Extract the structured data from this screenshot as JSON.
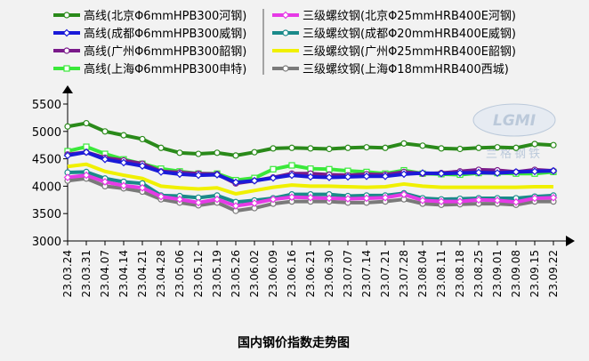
{
  "chart_data": {
    "type": "line",
    "title": "国内钢价指数走势图",
    "xlabel": "",
    "ylabel": "",
    "ylim": [
      3000,
      5500
    ],
    "yticks": [
      3000,
      3500,
      4000,
      4500,
      5000,
      5500
    ],
    "grid": false,
    "legend_position": "top",
    "categories": [
      "23.03.24",
      "23.03.31",
      "23.04.07",
      "23.04.14",
      "23.04.21",
      "23.04.28",
      "23.05.06",
      "23.05.12",
      "23.05.19",
      "23.05.26",
      "23.06.02",
      "23.06.09",
      "23.06.16",
      "23.06.21",
      "23.06.30",
      "23.07.07",
      "23.07.14",
      "23.07.21",
      "23.07.28",
      "23.08.04",
      "23.08.11",
      "23.08.18",
      "23.08.25",
      "23.09.01",
      "23.09.08",
      "23.09.15",
      "23.09.22"
    ],
    "series": [
      {
        "name": "高线(北京Φ6mmHPB300河钢)",
        "color": "#2a8a1a",
        "marker": "circle",
        "values": [
          5090,
          5150,
          5000,
          4930,
          4860,
          4700,
          4610,
          4590,
          4610,
          4560,
          4620,
          4690,
          4700,
          4690,
          4680,
          4700,
          4710,
          4700,
          4780,
          4740,
          4690,
          4680,
          4700,
          4710,
          4700,
          4770,
          4750
        ]
      },
      {
        "name": "高线(成都Φ6mmHPB300威钢)",
        "color": "#1a1ad8",
        "marker": "diamond",
        "values": [
          4560,
          4620,
          4490,
          4430,
          4370,
          4260,
          4220,
          4200,
          4210,
          4070,
          4100,
          4150,
          4200,
          4170,
          4160,
          4170,
          4180,
          4180,
          4220,
          4240,
          4230,
          4240,
          4250,
          4240,
          4260,
          4270,
          4280
        ]
      },
      {
        "name": "高线(广州Φ6mmHPB300韶钢)",
        "color": "#7a1a8a",
        "marker": "circle",
        "values": [
          4580,
          4620,
          4520,
          4470,
          4410,
          4270,
          4250,
          4230,
          4220,
          4050,
          4100,
          4160,
          4230,
          4230,
          4210,
          4200,
          4220,
          4210,
          4260,
          4230,
          4240,
          4270,
          4300,
          4290,
          4260,
          4300,
          4280
        ]
      },
      {
        "name": "高线(上海Φ6mmHPB300申特)",
        "color": "#3ae83a",
        "marker": "square",
        "values": [
          4640,
          4720,
          4590,
          4490,
          4410,
          4320,
          4270,
          4230,
          4230,
          4110,
          4150,
          4310,
          4380,
          4320,
          4310,
          4280,
          4260,
          4230,
          4290,
          4230,
          4220,
          4210,
          4240,
          4240,
          4230,
          4230,
          4260
        ]
      },
      {
        "name": "三级螺纹钢(北京Φ25mmHRB400E河钢)",
        "color": "#e63ae6",
        "marker": "diamond",
        "values": [
          4160,
          4200,
          4080,
          4010,
          3970,
          3810,
          3760,
          3700,
          3760,
          3640,
          3690,
          3760,
          3800,
          3790,
          3780,
          3770,
          3780,
          3790,
          3850,
          3740,
          3720,
          3720,
          3750,
          3740,
          3710,
          3780,
          3790
        ]
      },
      {
        "name": "三级螺纹钢(成都Φ20mmHRB400E威钢)",
        "color": "#1a8a8a",
        "marker": "circle",
        "values": [
          4250,
          4260,
          4140,
          4080,
          4050,
          3830,
          3820,
          3790,
          3830,
          3710,
          3740,
          3780,
          3850,
          3850,
          3850,
          3820,
          3830,
          3830,
          3870,
          3780,
          3760,
          3770,
          3780,
          3780,
          3780,
          3810,
          3830
        ]
      },
      {
        "name": "三级螺纹钢(广州Φ25mmHRB400E韶钢)",
        "color": "#f0f000",
        "marker": "none",
        "values": [
          4360,
          4400,
          4270,
          4200,
          4140,
          4000,
          3970,
          3950,
          3970,
          3860,
          3920,
          3980,
          4020,
          4000,
          4000,
          3990,
          3980,
          3990,
          4040,
          4000,
          3980,
          3980,
          3980,
          3980,
          3980,
          3990,
          3990
        ]
      },
      {
        "name": "三级螺纹钢(上海Φ18mmHRB400西城)",
        "color": "#7a7a7a",
        "marker": "circle",
        "values": [
          4100,
          4140,
          4000,
          3960,
          3900,
          3760,
          3700,
          3650,
          3700,
          3550,
          3600,
          3680,
          3720,
          3720,
          3720,
          3700,
          3700,
          3720,
          3760,
          3680,
          3660,
          3670,
          3680,
          3680,
          3660,
          3720,
          3720
        ]
      }
    ]
  },
  "watermark": "LGMI 兰格钢铁"
}
